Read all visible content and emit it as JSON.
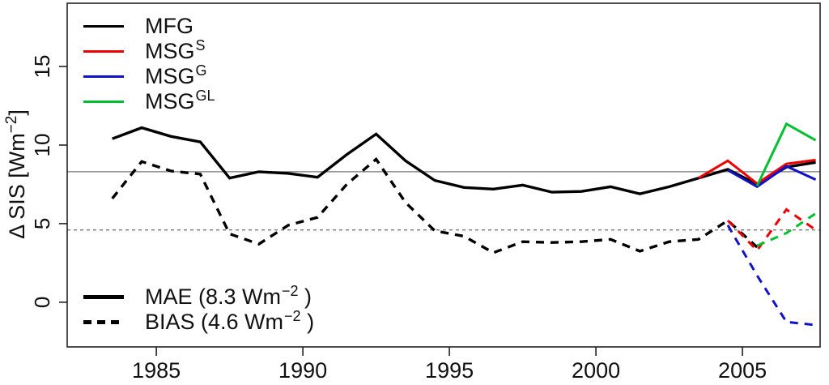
{
  "figure": {
    "background": "#ffffff",
    "text_color": "#111111"
  },
  "legend_models": {
    "entries": [
      {
        "label": "MFG",
        "sup": "",
        "color": "#000000",
        "style": "solid"
      },
      {
        "label": "MSG",
        "sup": "S",
        "color": "#ee0000",
        "style": "solid"
      },
      {
        "label": "MSG",
        "sup": "G",
        "color": "#1111cc",
        "style": "solid"
      },
      {
        "label": "MSG",
        "sup": "GL",
        "color": "#00c030",
        "style": "solid"
      }
    ]
  },
  "legend_stats": {
    "mae": {
      "pre": "MAE (8.3 Wm",
      "sup": "−2",
      "post": " )",
      "line_style": "solid",
      "color": "#000000"
    },
    "bias": {
      "pre": "BIAS (4.6 Wm",
      "sup": "−2",
      "post": " )",
      "line_style": "dashed",
      "color": "#000000"
    }
  },
  "chart_data": {
    "type": "line",
    "title": "",
    "xlabel": "",
    "ylabel": "Δ SIS [Wm⁻²]",
    "ylabel_parts": {
      "pre": "Δ SIS [Wm",
      "sup": "−2",
      "post": "]"
    },
    "xlim": [
      1981.96,
      2007.65
    ],
    "ylim": [
      -2.84,
      19.02
    ],
    "x_ticks": [
      1985,
      1990,
      1995,
      2000,
      2005
    ],
    "y_ticks": [
      0,
      5,
      10,
      15
    ],
    "grid": false,
    "legend_position": "top-left",
    "reference_lines": [
      {
        "name": "MAE mean",
        "value": 8.3,
        "style": "solid",
        "color": "#777777"
      },
      {
        "name": "BIAS mean",
        "value": 4.6,
        "style": "dashed",
        "color": "#777777"
      }
    ],
    "series": [
      {
        "name": "MFG MAE",
        "satellite": "MFG",
        "metric": "MAE",
        "color": "#000000",
        "style": "solid",
        "width": 3.4,
        "x": [
          1983.5,
          1984.5,
          1985.5,
          1986.5,
          1987.5,
          1988.5,
          1989.5,
          1990.5,
          1991.5,
          1992.5,
          1993.5,
          1994.5,
          1995.5,
          1996.5,
          1997.5,
          1998.5,
          1999.5,
          2000.5,
          2001.5,
          2002.5,
          2003.5,
          2004.5,
          2005.5,
          2006.5,
          2007.5
        ],
        "y": [
          10.4,
          11.1,
          10.55,
          10.2,
          7.9,
          8.3,
          8.2,
          7.95,
          9.4,
          10.7,
          9.0,
          7.75,
          7.3,
          7.2,
          7.45,
          7.0,
          7.05,
          7.35,
          6.9,
          7.35,
          7.9,
          8.45,
          7.5,
          8.6,
          8.9
        ]
      },
      {
        "name": "MSG-S MAE",
        "satellite": "MSG S",
        "metric": "MAE",
        "color": "#ee0000",
        "style": "solid",
        "width": 3,
        "x": [
          2003.5,
          2004.5,
          2005.5,
          2006.5,
          2007.5
        ],
        "y": [
          7.9,
          9.0,
          7.55,
          8.8,
          9.05
        ]
      },
      {
        "name": "MSG-G MAE",
        "satellite": "MSG G",
        "metric": "MAE",
        "color": "#1111cc",
        "style": "solid",
        "width": 3,
        "x": [
          2004.5,
          2005.5,
          2006.5,
          2007.5
        ],
        "y": [
          8.4,
          7.35,
          8.65,
          7.8
        ]
      },
      {
        "name": "MSG-GL MAE",
        "satellite": "MSG GL",
        "metric": "MAE",
        "color": "#00c030",
        "style": "solid",
        "width": 3,
        "x": [
          2005.5,
          2006.5,
          2007.5
        ],
        "y": [
          7.4,
          11.35,
          10.3
        ]
      },
      {
        "name": "MFG BIAS",
        "satellite": "MFG",
        "metric": "BIAS",
        "color": "#000000",
        "style": "dashed",
        "width": 3.4,
        "x": [
          1983.5,
          1984.5,
          1985.5,
          1986.5,
          1987.5,
          1988.5,
          1989.5,
          1990.5,
          1991.5,
          1992.5,
          1993.5,
          1994.5,
          1995.5,
          1996.5,
          1997.5,
          1998.5,
          1999.5,
          2000.5,
          2001.5,
          2002.5,
          2003.5,
          2004.5,
          2005.5
        ],
        "y": [
          6.6,
          8.95,
          8.35,
          8.15,
          4.35,
          3.7,
          4.9,
          5.4,
          7.5,
          9.1,
          6.35,
          4.55,
          4.2,
          3.15,
          3.85,
          3.8,
          3.85,
          4.0,
          3.25,
          3.85,
          4.0,
          5.2,
          3.5
        ]
      },
      {
        "name": "MSG-S BIAS",
        "satellite": "MSG S",
        "metric": "BIAS",
        "color": "#ee0000",
        "style": "dashed",
        "width": 3,
        "x": [
          2004.5,
          2005.5,
          2006.5,
          2007.5
        ],
        "y": [
          5.2,
          3.3,
          5.9,
          4.6
        ]
      },
      {
        "name": "MSG-G BIAS",
        "satellite": "MSG G",
        "metric": "BIAS",
        "color": "#1111cc",
        "style": "dashed",
        "width": 3,
        "x": [
          2004.5,
          2005.5,
          2006.5,
          2007.5
        ],
        "y": [
          4.9,
          1.7,
          -1.25,
          -1.45
        ]
      },
      {
        "name": "MSG-GL BIAS",
        "satellite": "MSG GL",
        "metric": "BIAS",
        "color": "#00c030",
        "style": "dashed",
        "width": 3,
        "x": [
          2005.5,
          2006.5,
          2007.5
        ],
        "y": [
          3.6,
          4.4,
          5.65
        ]
      }
    ]
  }
}
